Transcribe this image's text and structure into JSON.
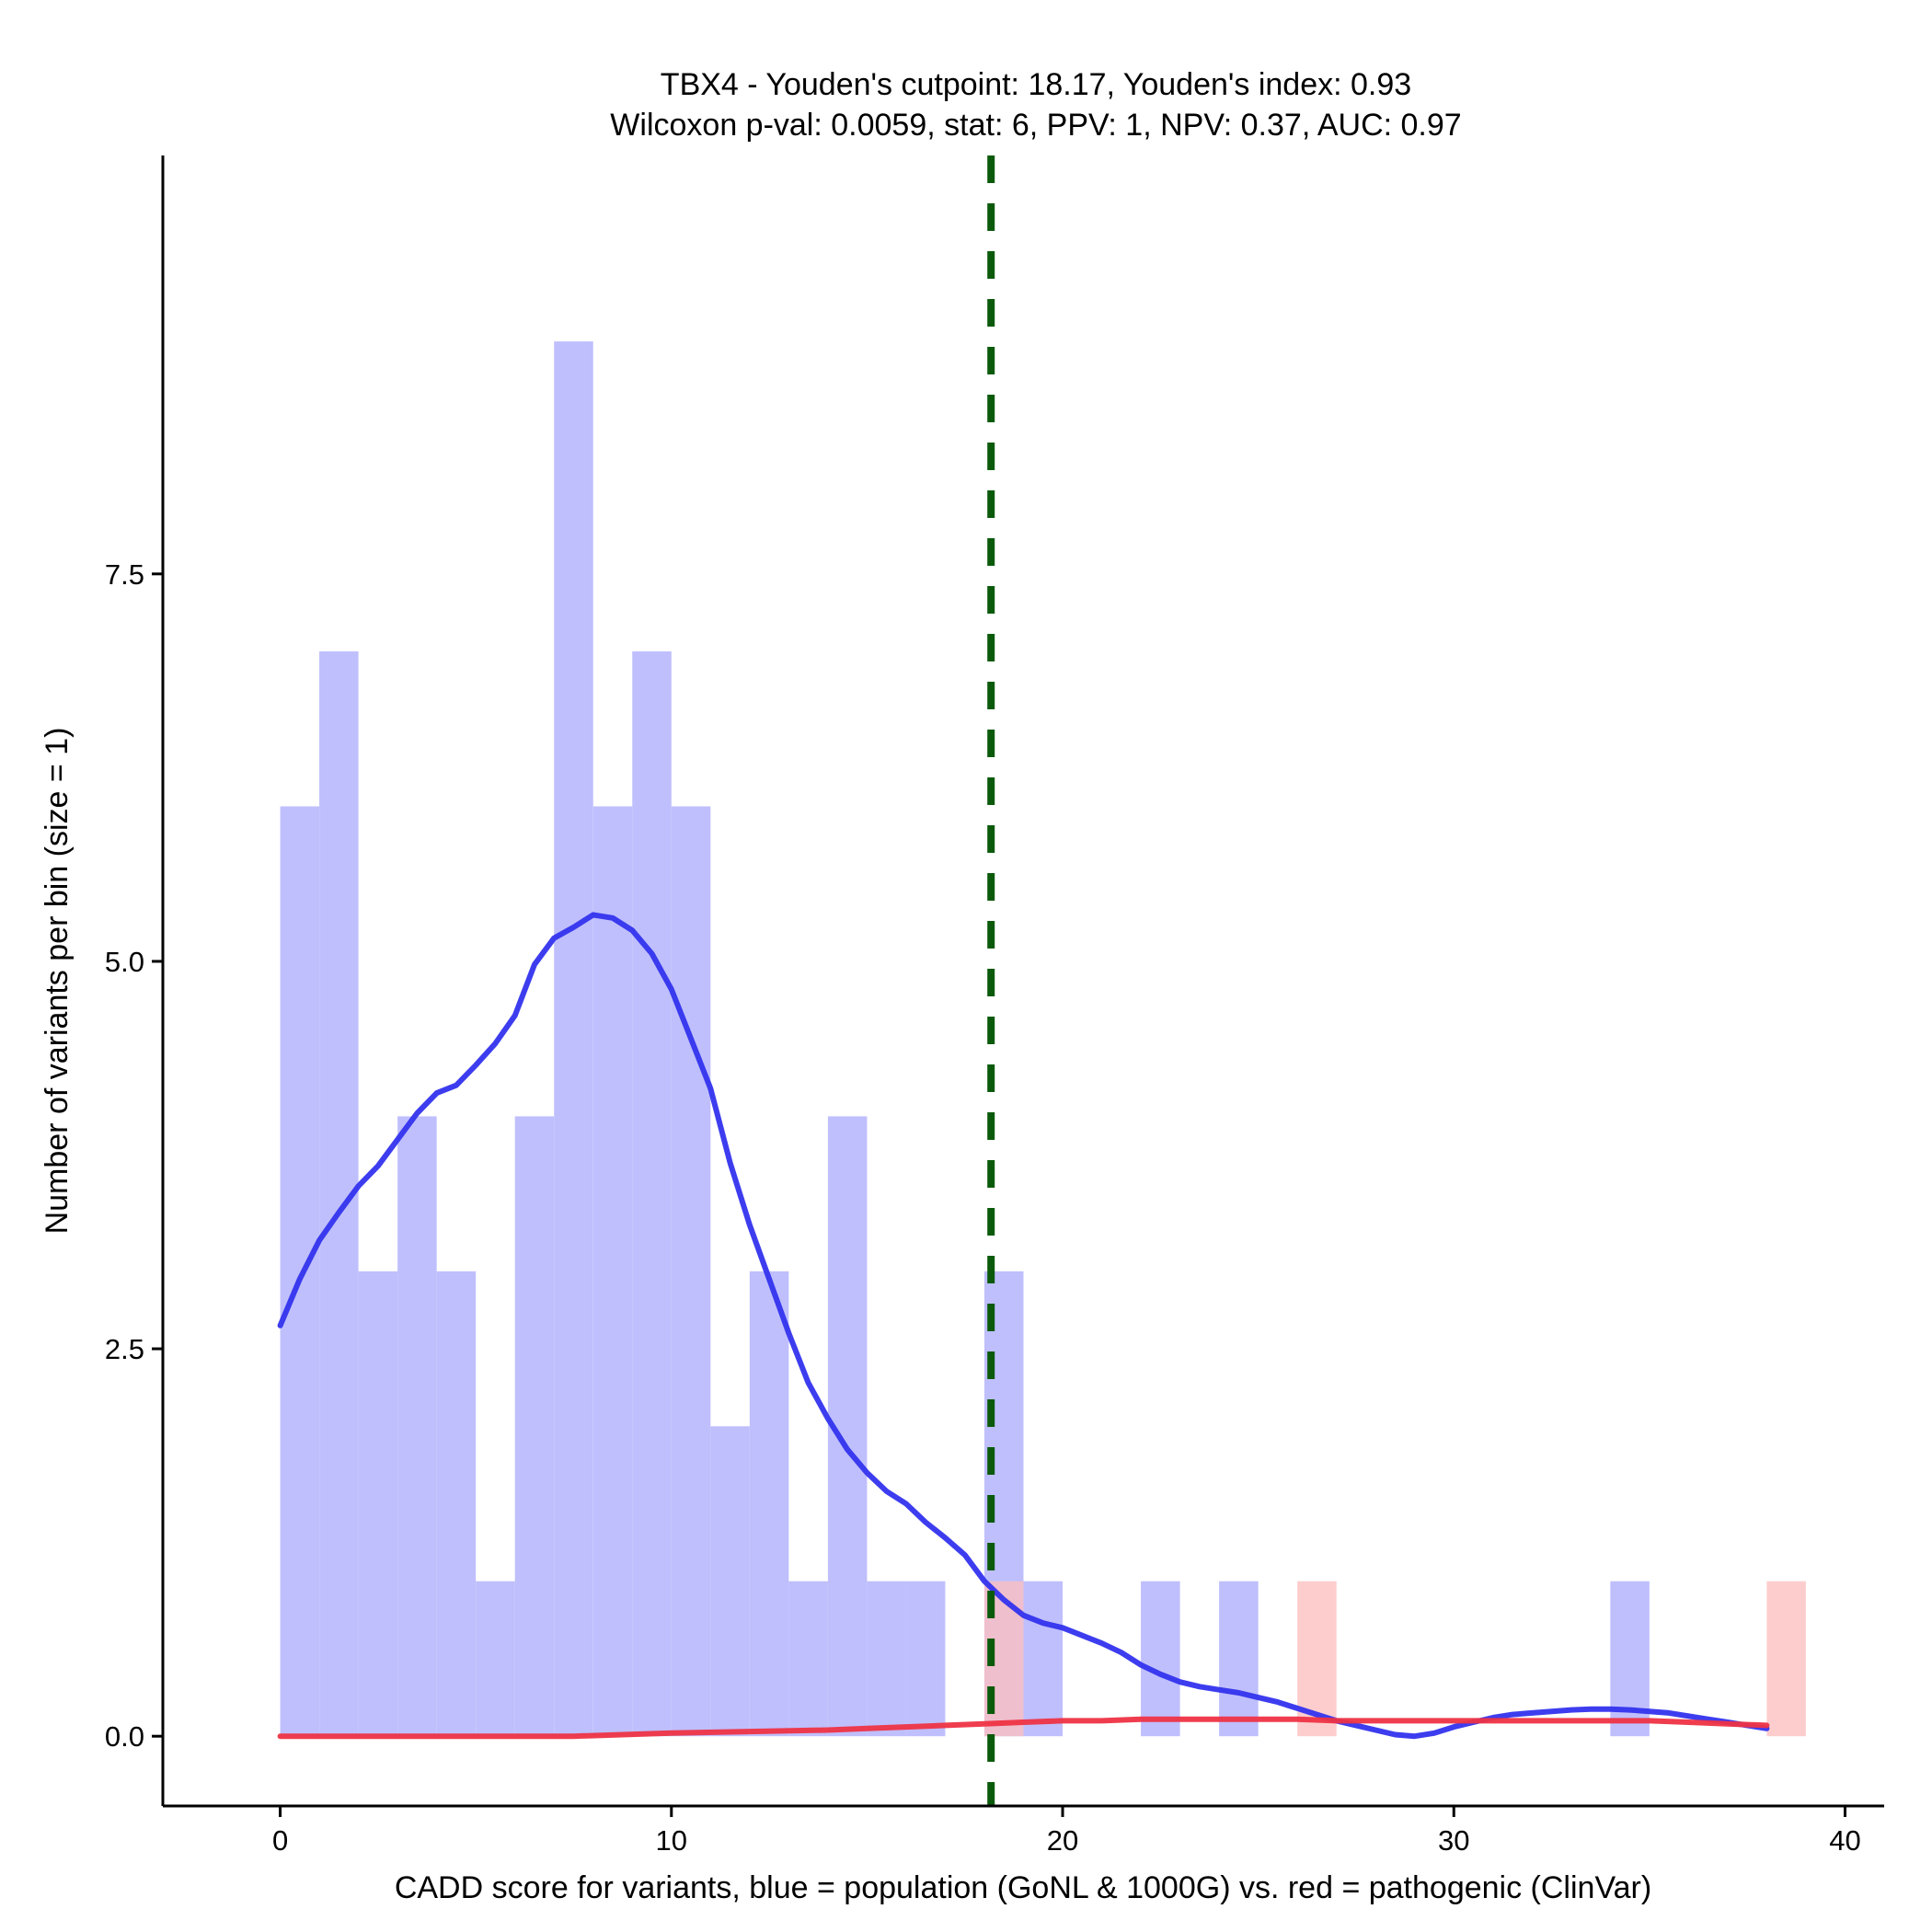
{
  "chart_data": {
    "type": "histogram",
    "title_line1": "TBX4 - Youden's cutpoint: 18.17, Youden's index: 0.93",
    "title_line2": "Wilcoxon p-val: 0.0059, stat: 6, PPV: 1, NPV: 0.37, AUC: 0.97",
    "xlabel": "CADD score for variants, blue = population (GoNL & 1000G) vs. red = pathogenic (ClinVar)",
    "ylabel": "Number of variants per bin (size = 1)",
    "xlim": [
      -3,
      41
    ],
    "ylim": [
      -0.45,
      10.2
    ],
    "x_ticks": [
      0,
      10,
      20,
      30,
      40
    ],
    "x_tick_labels": [
      "0",
      "10",
      "20",
      "30",
      "40"
    ],
    "y_ticks": [
      0,
      2.5,
      5,
      7.5
    ],
    "y_tick_labels": [
      "0.0",
      "2.5",
      "5.0",
      "7.5"
    ],
    "bin_width": 1,
    "cutpoint": 18.17,
    "colors": {
      "population_bar": "#bfbffd",
      "pathogenic_bar": "#fdbfbf",
      "population_density": "#3333ee",
      "pathogenic_density": "#ee3344",
      "cutpoint_line": "#0b5a0b"
    },
    "series": [
      {
        "name": "population",
        "bins": [
          {
            "start": 0,
            "count": 6
          },
          {
            "start": 1,
            "count": 7
          },
          {
            "start": 2,
            "count": 3
          },
          {
            "start": 3,
            "count": 4
          },
          {
            "start": 4,
            "count": 3
          },
          {
            "start": 5,
            "count": 1
          },
          {
            "start": 6,
            "count": 4
          },
          {
            "start": 7,
            "count": 9
          },
          {
            "start": 8,
            "count": 6
          },
          {
            "start": 9,
            "count": 7
          },
          {
            "start": 10,
            "count": 6
          },
          {
            "start": 11,
            "count": 2
          },
          {
            "start": 12,
            "count": 3
          },
          {
            "start": 13,
            "count": 1
          },
          {
            "start": 14,
            "count": 4
          },
          {
            "start": 15,
            "count": 1
          },
          {
            "start": 16,
            "count": 1
          },
          {
            "start": 18,
            "count": 3
          },
          {
            "start": 19,
            "count": 1
          },
          {
            "start": 22,
            "count": 1
          },
          {
            "start": 24,
            "count": 1
          },
          {
            "start": 34,
            "count": 1
          }
        ]
      },
      {
        "name": "pathogenic",
        "bins": [
          {
            "start": 18,
            "count": 1
          },
          {
            "start": 26,
            "count": 1
          },
          {
            "start": 38,
            "count": 1
          }
        ]
      }
    ],
    "density_curves": [
      {
        "name": "population",
        "x": [
          0,
          0.5,
          1,
          1.5,
          2,
          2.5,
          3,
          3.5,
          4,
          4.5,
          5,
          5.5,
          6,
          6.5,
          7,
          7.5,
          8,
          8.5,
          9,
          9.5,
          10,
          10.5,
          11,
          11.5,
          12,
          12.5,
          13,
          13.5,
          14,
          14.5,
          15,
          15.5,
          16,
          16.5,
          17,
          17.5,
          18,
          18.5,
          19,
          19.5,
          20,
          20.5,
          21,
          21.5,
          22,
          22.5,
          23,
          23.5,
          24,
          24.5,
          25,
          25.5,
          26,
          26.5,
          27,
          27.5,
          28,
          28.5,
          29,
          29.5,
          30,
          30.5,
          31,
          31.5,
          32,
          32.5,
          33,
          33.5,
          34,
          34.5,
          35,
          35.5,
          36,
          36.5,
          37,
          37.5,
          38
        ],
        "y": [
          2.65,
          2.95,
          3.2,
          3.38,
          3.55,
          3.68,
          3.85,
          4.02,
          4.15,
          4.2,
          4.33,
          4.47,
          4.65,
          4.98,
          5.15,
          5.22,
          5.3,
          5.28,
          5.2,
          5.05,
          4.82,
          4.5,
          4.18,
          3.7,
          3.3,
          2.95,
          2.6,
          2.28,
          2.05,
          1.85,
          1.7,
          1.58,
          1.5,
          1.38,
          1.28,
          1.17,
          1.0,
          0.88,
          0.78,
          0.73,
          0.7,
          0.65,
          0.6,
          0.54,
          0.46,
          0.4,
          0.35,
          0.32,
          0.3,
          0.28,
          0.25,
          0.22,
          0.18,
          0.14,
          0.1,
          0.07,
          0.04,
          0.01,
          0.0,
          0.02,
          0.06,
          0.09,
          0.12,
          0.14,
          0.15,
          0.16,
          0.17,
          0.175,
          0.175,
          0.17,
          0.16,
          0.15,
          0.13,
          0.11,
          0.09,
          0.07,
          0.05
        ]
      },
      {
        "name": "pathogenic",
        "x": [
          0,
          2,
          4,
          6,
          7.5,
          10,
          12,
          14,
          15,
          16,
          17,
          18,
          19,
          20,
          21,
          22,
          23,
          24,
          25,
          26,
          27,
          28,
          29,
          30,
          31,
          32,
          33,
          34,
          35,
          36,
          37,
          38
        ],
        "y": [
          0.0,
          0.0,
          0.0,
          0.0,
          0.0,
          0.02,
          0.03,
          0.04,
          0.05,
          0.06,
          0.07,
          0.08,
          0.09,
          0.1,
          0.1,
          0.11,
          0.11,
          0.11,
          0.11,
          0.11,
          0.1,
          0.1,
          0.1,
          0.1,
          0.1,
          0.1,
          0.1,
          0.1,
          0.1,
          0.09,
          0.08,
          0.07
        ]
      }
    ]
  }
}
